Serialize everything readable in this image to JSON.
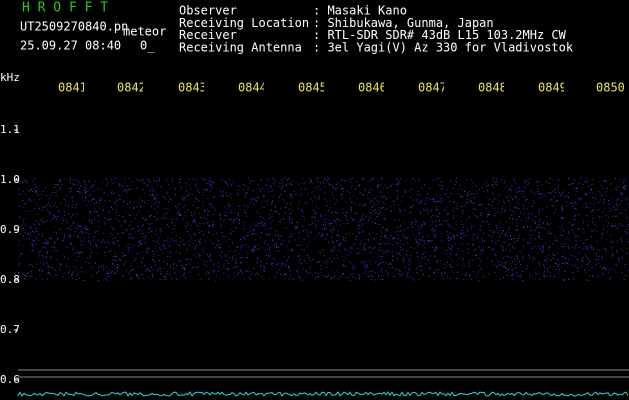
{
  "header": {
    "app": "H R O F F T",
    "file": "UT2509270840.pn",
    "kind": "meteor",
    "datetime": "25.09.27 08:40",
    "count": "0_",
    "fields": [
      {
        "label": "Observer",
        "value": ": Masaki Kano"
      },
      {
        "label": "Receiving Location",
        "value": ": Shibukawa, Gunma, Japan"
      },
      {
        "label": "Receiver",
        "value": ": RTL-SDR SDR# 43dB L15 103.2MHz CW"
      },
      {
        "label": "Receiving Antenna",
        "value": ": 3el Yagi(V) Az 330 for Vladivostok"
      }
    ]
  },
  "chart_data": {
    "type": "spectrogram",
    "ylabel": "kHz",
    "categories": [
      "0841",
      "0842",
      "0843",
      "0844",
      "0845",
      "0846",
      "0847",
      "0848",
      "0849",
      "0850"
    ],
    "ylim": [
      0.56,
      1.2
    ],
    "yticks": [
      1.1,
      {
        "value": 1.0,
        "label": "1.0"
      },
      0.9,
      0.8,
      0.7,
      0.6
    ]
  }
}
